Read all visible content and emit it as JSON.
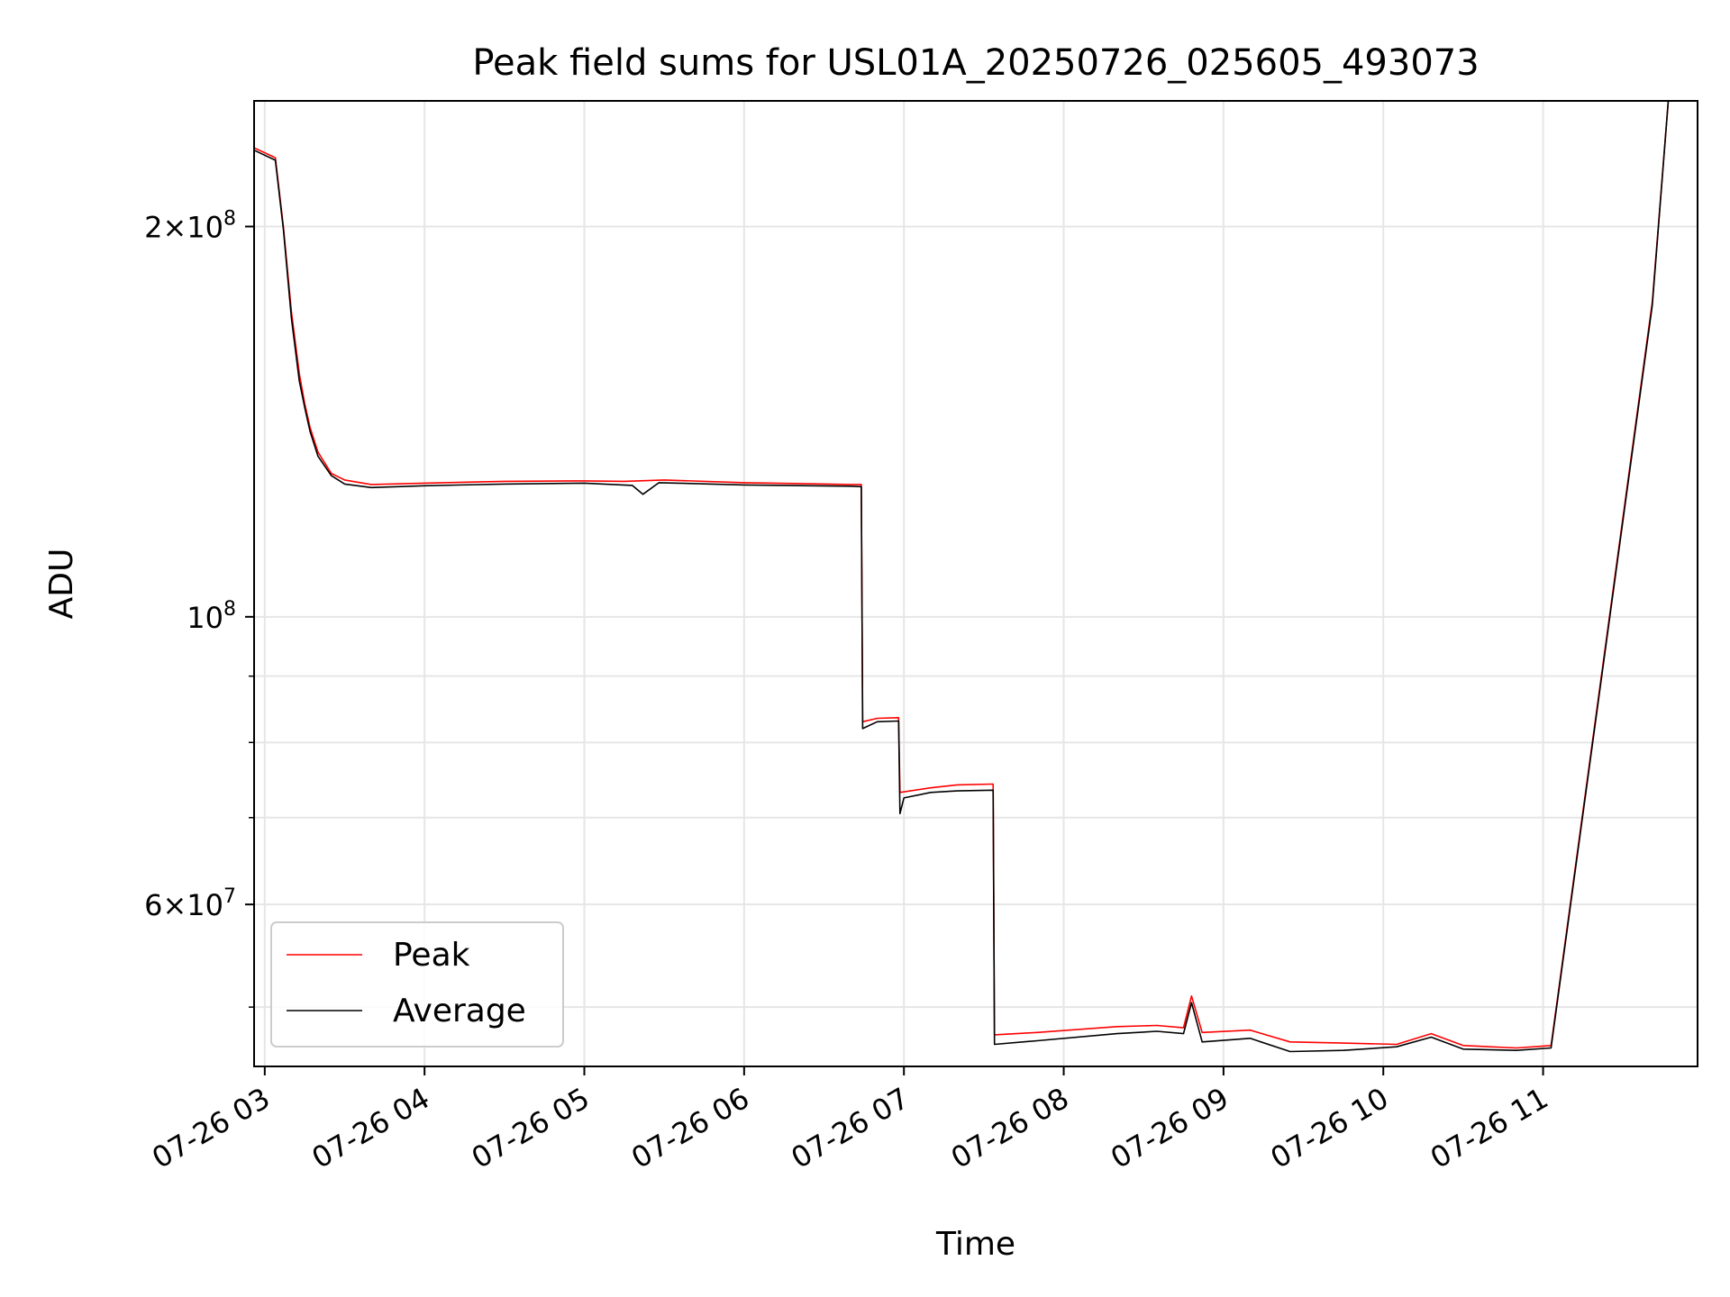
{
  "chart_data": {
    "type": "line",
    "title": "Peak field sums for USL01A_20250726_025605_493073",
    "xlabel": "Time",
    "ylabel": "ADU",
    "y_scale": "log",
    "ylim": [
      45000000,
      250000000
    ],
    "xlim": [
      "2025-07-26T02:56:00",
      "2025-07-26T11:58:00"
    ],
    "grid": true,
    "legend_position": "lower-left",
    "x_ticks": [
      {
        "value": "2025-07-26T03:00:00",
        "label": "07-26 03"
      },
      {
        "value": "2025-07-26T04:00:00",
        "label": "07-26 04"
      },
      {
        "value": "2025-07-26T05:00:00",
        "label": "07-26 05"
      },
      {
        "value": "2025-07-26T06:00:00",
        "label": "07-26 06"
      },
      {
        "value": "2025-07-26T07:00:00",
        "label": "07-26 07"
      },
      {
        "value": "2025-07-26T08:00:00",
        "label": "07-26 08"
      },
      {
        "value": "2025-07-26T09:00:00",
        "label": "07-26 09"
      },
      {
        "value": "2025-07-26T10:00:00",
        "label": "07-26 10"
      },
      {
        "value": "2025-07-26T11:00:00",
        "label": "07-26 11"
      }
    ],
    "y_ticks_major": [
      {
        "value": 60000000,
        "mantissa": "6",
        "base": "10",
        "exp": "7"
      },
      {
        "value": 100000000,
        "mantissa": "",
        "base": "10",
        "exp": "8"
      },
      {
        "value": 200000000,
        "mantissa": "2",
        "base": "10",
        "exp": "8"
      }
    ],
    "y_ticks_minor": [
      50000000,
      70000000,
      80000000,
      90000000,
      300000000
    ],
    "series": [
      {
        "name": "Peak",
        "color": "#ff0000",
        "points": [
          [
            "2025-07-26T02:56:00",
            230000000
          ],
          [
            "2025-07-26T03:04:00",
            226000000
          ],
          [
            "2025-07-26T03:07:00",
            200000000
          ],
          [
            "2025-07-26T03:10:00",
            172000000
          ],
          [
            "2025-07-26T03:13:00",
            154000000
          ],
          [
            "2025-07-26T03:15:00",
            146000000
          ],
          [
            "2025-07-26T03:17:00",
            140000000
          ],
          [
            "2025-07-26T03:20:00",
            134000000
          ],
          [
            "2025-07-26T03:25:00",
            129000000
          ],
          [
            "2025-07-26T03:30:00",
            127500000
          ],
          [
            "2025-07-26T03:40:00",
            126500000
          ],
          [
            "2025-07-26T04:00:00",
            126800000
          ],
          [
            "2025-07-26T04:30:00",
            127200000
          ],
          [
            "2025-07-26T05:00:00",
            127300000
          ],
          [
            "2025-07-26T05:15:00",
            127200000
          ],
          [
            "2025-07-26T05:30:00",
            127500000
          ],
          [
            "2025-07-26T06:00:00",
            126900000
          ],
          [
            "2025-07-26T06:40:00",
            126500000
          ],
          [
            "2025-07-26T06:44:00",
            126500000
          ],
          [
            "2025-07-26T06:44:30",
            83000000
          ],
          [
            "2025-07-26T06:50:00",
            83500000
          ],
          [
            "2025-07-26T06:58:00",
            83600000
          ],
          [
            "2025-07-26T06:58:30",
            73200000
          ],
          [
            "2025-07-26T07:10:00",
            73800000
          ],
          [
            "2025-07-26T07:20:00",
            74200000
          ],
          [
            "2025-07-26T07:33:30",
            74300000
          ],
          [
            "2025-07-26T07:34:00",
            47600000
          ],
          [
            "2025-07-26T07:50:00",
            47800000
          ],
          [
            "2025-07-26T08:20:00",
            48300000
          ],
          [
            "2025-07-26T08:35:00",
            48400000
          ],
          [
            "2025-07-26T08:45:00",
            48200000
          ],
          [
            "2025-07-26T08:48:00",
            51000000
          ],
          [
            "2025-07-26T08:52:00",
            47800000
          ],
          [
            "2025-07-26T09:10:00",
            48000000
          ],
          [
            "2025-07-26T09:25:00",
            47000000
          ],
          [
            "2025-07-26T09:45:00",
            46900000
          ],
          [
            "2025-07-26T10:05:00",
            46800000
          ],
          [
            "2025-07-26T10:18:00",
            47700000
          ],
          [
            "2025-07-26T10:30:00",
            46700000
          ],
          [
            "2025-07-26T10:50:00",
            46500000
          ],
          [
            "2025-07-26T11:03:00",
            46700000
          ],
          [
            "2025-07-26T11:41:00",
            175000000
          ],
          [
            "2025-07-26T11:47:00",
            250000000
          ]
        ]
      },
      {
        "name": "Average",
        "color": "#000000",
        "points": [
          [
            "2025-07-26T02:56:00",
            229000000
          ],
          [
            "2025-07-26T03:04:00",
            225000000
          ],
          [
            "2025-07-26T03:07:00",
            199000000
          ],
          [
            "2025-07-26T03:10:00",
            170000000
          ],
          [
            "2025-07-26T03:13:00",
            152000000
          ],
          [
            "2025-07-26T03:15:00",
            145000000
          ],
          [
            "2025-07-26T03:17:00",
            139000000
          ],
          [
            "2025-07-26T03:20:00",
            133000000
          ],
          [
            "2025-07-26T03:25:00",
            128500000
          ],
          [
            "2025-07-26T03:30:00",
            126600000
          ],
          [
            "2025-07-26T03:40:00",
            125800000
          ],
          [
            "2025-07-26T04:00:00",
            126200000
          ],
          [
            "2025-07-26T04:30:00",
            126600000
          ],
          [
            "2025-07-26T05:00:00",
            126800000
          ],
          [
            "2025-07-26T05:18:00",
            126300000
          ],
          [
            "2025-07-26T05:22:00",
            124300000
          ],
          [
            "2025-07-26T05:28:00",
            126900000
          ],
          [
            "2025-07-26T06:00:00",
            126400000
          ],
          [
            "2025-07-26T06:40:00",
            126100000
          ],
          [
            "2025-07-26T06:44:00",
            126000000
          ],
          [
            "2025-07-26T06:44:30",
            82000000
          ],
          [
            "2025-07-26T06:50:00",
            83000000
          ],
          [
            "2025-07-26T06:58:00",
            83100000
          ],
          [
            "2025-07-26T06:58:30",
            70500000
          ],
          [
            "2025-07-26T07:00:00",
            72500000
          ],
          [
            "2025-07-26T07:10:00",
            73200000
          ],
          [
            "2025-07-26T07:20:00",
            73400000
          ],
          [
            "2025-07-26T07:33:30",
            73500000
          ],
          [
            "2025-07-26T07:34:00",
            46800000
          ],
          [
            "2025-07-26T07:50:00",
            47100000
          ],
          [
            "2025-07-26T08:20:00",
            47700000
          ],
          [
            "2025-07-26T08:35:00",
            47900000
          ],
          [
            "2025-07-26T08:45:00",
            47700000
          ],
          [
            "2025-07-26T08:48:00",
            50400000
          ],
          [
            "2025-07-26T08:52:00",
            47000000
          ],
          [
            "2025-07-26T09:10:00",
            47300000
          ],
          [
            "2025-07-26T09:25:00",
            46200000
          ],
          [
            "2025-07-26T09:45:00",
            46300000
          ],
          [
            "2025-07-26T10:05:00",
            46600000
          ],
          [
            "2025-07-26T10:18:00",
            47400000
          ],
          [
            "2025-07-26T10:30:00",
            46400000
          ],
          [
            "2025-07-26T10:50:00",
            46300000
          ],
          [
            "2025-07-26T11:03:00",
            46500000
          ],
          [
            "2025-07-26T11:41:00",
            174000000
          ],
          [
            "2025-07-26T11:47:00",
            250000000
          ]
        ]
      }
    ]
  }
}
